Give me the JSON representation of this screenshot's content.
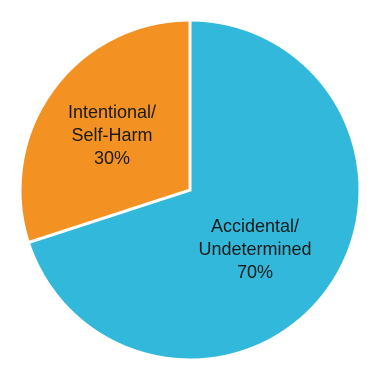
{
  "chart_data": {
    "type": "pie",
    "slices": [
      {
        "label_lines": [
          "Accidental/",
          "Undetermined"
        ],
        "percent_label": "70%",
        "value": 70,
        "color": "#31b8da"
      },
      {
        "label_lines": [
          "Intentional/",
          "Self-Harm"
        ],
        "percent_label": "30%",
        "value": 30,
        "color": "#f39223"
      }
    ],
    "start_angle_deg": 0,
    "direction": "clockwise",
    "slice_border_color": "#ffffff",
    "legend": "none"
  }
}
